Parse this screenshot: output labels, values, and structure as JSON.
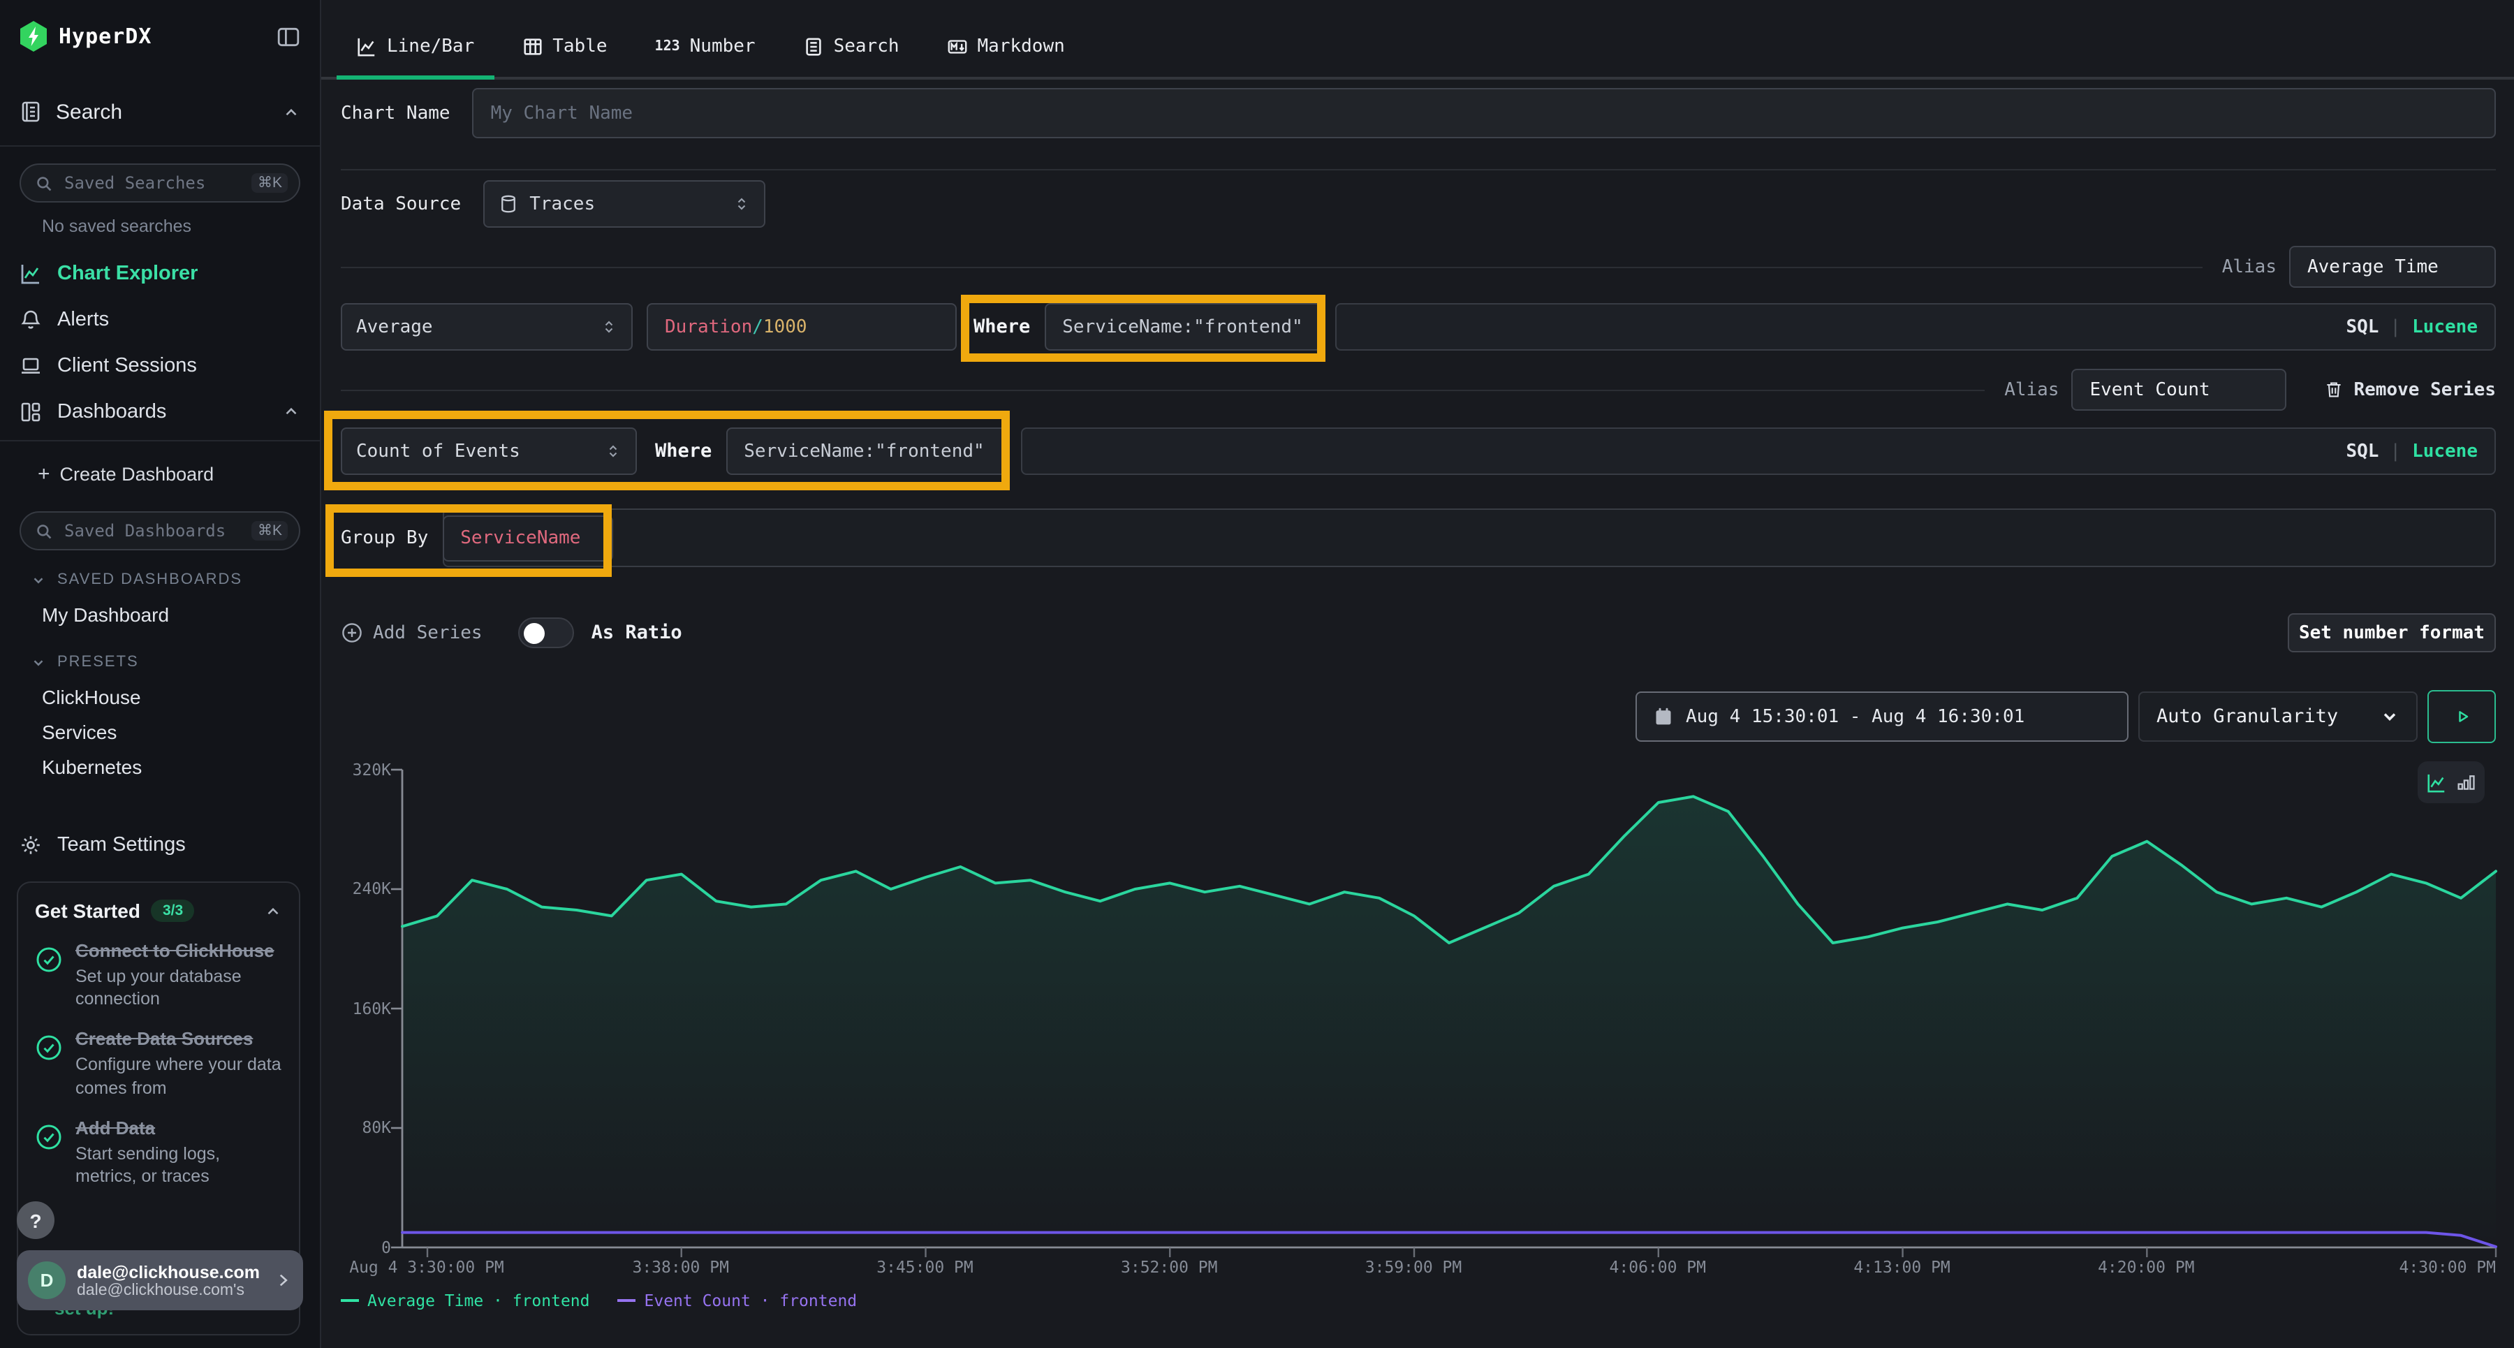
{
  "app": {
    "name": "HyperDX"
  },
  "colors": {
    "accent_green": "#2fe0a2",
    "logo_green": "#33d45f",
    "tab_underline": "#14b374",
    "series_green": "#2bd69e",
    "series_purple": "#6d55e8",
    "legend_purple": "#9673f0",
    "annotation_orange": "#f0a90e",
    "code_red": "#e0687e",
    "code_teal": "#40c4b0",
    "code_yellow": "#d9b36a"
  },
  "sidebar": {
    "search_section": "Search",
    "saved_searches": {
      "placeholder": "Saved Searches",
      "shortcut": "⌘K"
    },
    "no_saved": "No saved searches",
    "nav": [
      {
        "label": "Chart Explorer"
      },
      {
        "label": "Alerts"
      },
      {
        "label": "Client Sessions"
      },
      {
        "label": "Dashboards"
      }
    ],
    "create_dashboard": "Create Dashboard",
    "saved_dashboards": {
      "placeholder": "Saved Dashboards",
      "shortcut": "⌘K"
    },
    "groups": [
      {
        "title": "SAVED DASHBOARDS",
        "items": [
          "My Dashboard"
        ]
      },
      {
        "title": "PRESETS",
        "items": [
          "ClickHouse",
          "Services",
          "Kubernetes"
        ]
      }
    ],
    "team_settings": "Team Settings",
    "get_started": {
      "title": "Get Started",
      "badge": "3/3",
      "items": [
        {
          "title": "Connect to ClickHouse",
          "desc": "Set up your database connection"
        },
        {
          "title": "Create Data Sources",
          "desc": "Configure where your data comes from"
        },
        {
          "title": "Add Data",
          "desc": "Start sending logs, metrics, or traces"
        }
      ],
      "completion_fragment": "set up!"
    },
    "help": "?",
    "user": {
      "initial": "D",
      "name": "dale@clickhouse.com",
      "sub": "dale@clickhouse.com's"
    }
  },
  "tabs": [
    {
      "label": "Line/Bar"
    },
    {
      "label": "Table"
    },
    {
      "prefix": "123",
      "label": "Number"
    },
    {
      "label": "Search"
    },
    {
      "label": "Markdown"
    }
  ],
  "form": {
    "chart_name": {
      "label": "Chart Name",
      "placeholder": "My Chart Name"
    },
    "data_source": {
      "label": "Data Source",
      "value": "Traces"
    },
    "series": [
      {
        "alias_label": "Alias",
        "alias": "Average Time",
        "aggregation": "Average",
        "field_parts": [
          {
            "text": "Duration"
          },
          {
            "text": "/"
          },
          {
            "text": "1000"
          }
        ],
        "where_label": "Where",
        "where": "ServiceName:\"frontend\"",
        "sql": "SQL",
        "pipe": "|",
        "lucene": "Lucene"
      },
      {
        "alias_label": "Alias",
        "alias": "Event Count",
        "remove_label": "Remove Series",
        "aggregation": "Count of Events",
        "where_label": "Where",
        "where": "ServiceName:\"frontend\"",
        "sql": "SQL",
        "pipe": "|",
        "lucene": "Lucene"
      }
    ],
    "group_by": {
      "label": "Group By",
      "value": "ServiceName"
    },
    "add_series": "Add Series",
    "as_ratio": "As Ratio",
    "set_number_format": "Set number format"
  },
  "controls": {
    "time_range": "Aug 4 15:30:01 - Aug 4 16:30:01",
    "granularity": "Auto Granularity"
  },
  "chart_data": {
    "type": "line",
    "title": "",
    "xlabel": "",
    "ylabel": "",
    "grid": false,
    "legend_position": "bottom-left",
    "y_axis": {
      "min": 0,
      "max": 320000,
      "tick_labels": [
        "320K",
        "240K",
        "160K",
        "80K",
        "0"
      ]
    },
    "x_axis": {
      "tick_labels": [
        "Aug 4 3:30:00 PM",
        "3:38:00 PM",
        "3:45:00 PM",
        "3:52:00 PM",
        "3:59:00 PM",
        "4:06:00 PM",
        "4:13:00 PM",
        "4:20:00 PM",
        "4:30:00 PM"
      ],
      "tick_minutes": [
        0,
        8,
        15,
        22,
        29,
        36,
        43,
        50,
        60
      ],
      "range_minutes": 60
    },
    "legend": [
      {
        "label": "Average Time · frontend",
        "color": "#30e3a4"
      },
      {
        "label": "Event Count · frontend",
        "color": "#9673f0"
      }
    ],
    "series": [
      {
        "name": "Average Time · frontend",
        "color": "#2bd69e",
        "units": "thousands",
        "sample_interval_minutes": 1,
        "values_k": [
          215,
          222,
          246,
          240,
          228,
          226,
          222,
          246,
          250,
          232,
          228,
          230,
          246,
          252,
          240,
          248,
          255,
          244,
          246,
          238,
          232,
          240,
          244,
          238,
          242,
          236,
          230,
          238,
          234,
          222,
          204,
          214,
          224,
          242,
          250,
          275,
          298,
          302,
          292,
          262,
          230,
          204,
          208,
          214,
          218,
          224,
          230,
          226,
          234,
          262,
          272,
          256,
          238,
          230,
          234,
          228,
          238,
          250,
          244,
          234,
          252
        ]
      },
      {
        "name": "Event Count · frontend",
        "color": "#6d55e8",
        "units": "thousands",
        "sample_interval_minutes": 1,
        "values_k": [
          10,
          10,
          10,
          10,
          10,
          10,
          10,
          10,
          10,
          10,
          10,
          10,
          10,
          10,
          10,
          10,
          10,
          10,
          10,
          10,
          10,
          10,
          10,
          10,
          10,
          10,
          10,
          10,
          10,
          10,
          10,
          10,
          10,
          10,
          10,
          10,
          10,
          10,
          10,
          10,
          10,
          10,
          10,
          10,
          10,
          10,
          10,
          10,
          10,
          10,
          10,
          10,
          10,
          10,
          10,
          10,
          10,
          10,
          10,
          8,
          0.5
        ]
      }
    ]
  }
}
